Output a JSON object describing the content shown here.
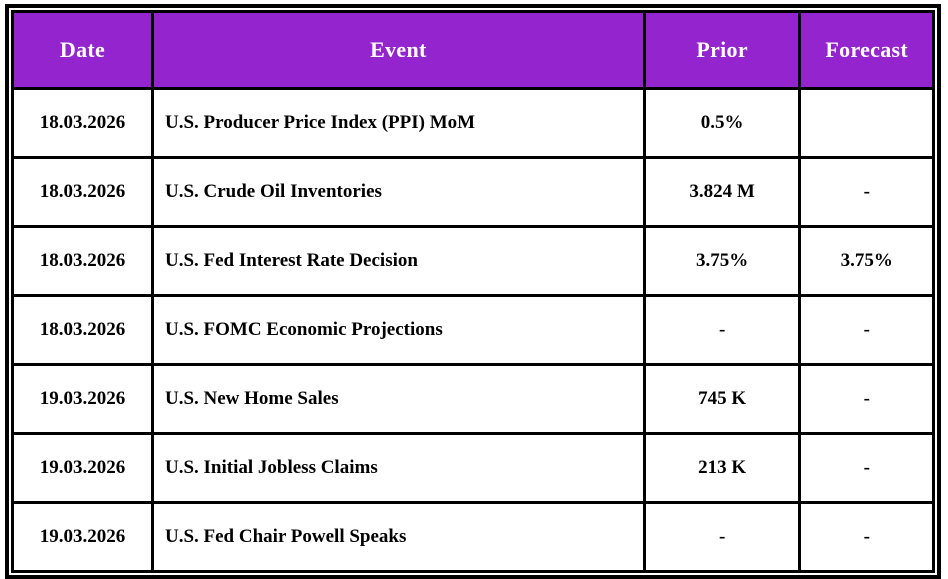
{
  "table": {
    "title_semantic": "economic-calendar-table",
    "columns": [
      {
        "key": "date",
        "label": "Date"
      },
      {
        "key": "event",
        "label": "Event"
      },
      {
        "key": "prior",
        "label": "Prior"
      },
      {
        "key": "forecast",
        "label": "Forecast"
      }
    ],
    "rows": [
      {
        "date": "18.03.2026",
        "event": "U.S. Producer Price Index (PPI) MoM",
        "prior": "0.5%",
        "forecast": ""
      },
      {
        "date": "18.03.2026",
        "event": "U.S. Crude Oil Inventories",
        "prior": "3.824 M",
        "forecast": "-"
      },
      {
        "date": "18.03.2026",
        "event": "U.S. Fed Interest Rate Decision",
        "prior": "3.75%",
        "forecast": "3.75%"
      },
      {
        "date": "18.03.2026",
        "event": "U.S. FOMC Economic Projections",
        "prior": "-",
        "forecast": "-"
      },
      {
        "date": "19.03.2026",
        "event": "U.S. New Home Sales",
        "prior": "745 K",
        "forecast": "-"
      },
      {
        "date": "19.03.2026",
        "event": "U.S. Initial Jobless Claims",
        "prior": "213 K",
        "forecast": "-"
      },
      {
        "date": "19.03.2026",
        "event": "U.S. Fed Chair Powell Speaks",
        "prior": "-",
        "forecast": "-"
      }
    ],
    "colors": {
      "header_bg": "#9424CE",
      "header_text": "#FFFFFF",
      "border": "#000000",
      "row_bg": "#FFFFFF",
      "text": "#000000"
    }
  },
  "chart_data": {
    "type": "table",
    "title": "",
    "columns": [
      "Date",
      "Event",
      "Prior",
      "Forecast"
    ],
    "rows": [
      [
        "18.03.2026",
        "U.S. Producer Price Index (PPI) MoM",
        "0.5%",
        ""
      ],
      [
        "18.03.2026",
        "U.S. Crude Oil Inventories",
        "3.824 M",
        "-"
      ],
      [
        "18.03.2026",
        "U.S. Fed Interest Rate Decision",
        "3.75%",
        "3.75%"
      ],
      [
        "18.03.2026",
        "U.S. FOMC Economic Projections",
        "-",
        "-"
      ],
      [
        "19.03.2026",
        "U.S. New Home Sales",
        "745 K",
        "-"
      ],
      [
        "19.03.2026",
        "U.S. Initial Jobless Claims",
        "213 K",
        "-"
      ],
      [
        "19.03.2026",
        "U.S. Fed Chair Powell Speaks",
        "-",
        "-"
      ]
    ]
  }
}
